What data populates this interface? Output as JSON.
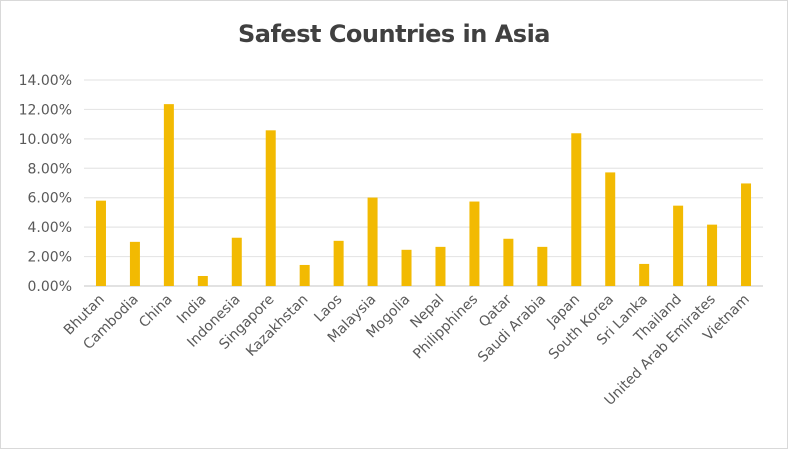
{
  "chart_data": {
    "type": "bar",
    "title": "Safest Countries in Asia",
    "xlabel": "",
    "ylabel": "",
    "ylim": [
      0,
      0.14
    ],
    "yticks": [
      0,
      0.02,
      0.04,
      0.06,
      0.08,
      0.1,
      0.12,
      0.14
    ],
    "ytick_labels": [
      "0.00%",
      "2.00%",
      "4.00%",
      "6.00%",
      "8.00%",
      "10.00%",
      "12.00%",
      "14.00%"
    ],
    "grid": true,
    "legend": "none",
    "bar_color": "#F2BA02",
    "categories": [
      "Bhutan",
      "Cambodia",
      "China",
      "India",
      "Indonesia",
      "Singapore",
      "Kazakhstan",
      "Laos",
      "Malaysia",
      "Mogolia",
      "Nepal",
      "Philipphines",
      "Qatar",
      "Saudi Arabia",
      "Japan",
      "South Korea",
      "Sri Lanka",
      "Thailand",
      "United Arab Emirates",
      "Vietnam"
    ],
    "values": [
      0.058,
      0.03,
      0.1236,
      0.0068,
      0.0328,
      0.1058,
      0.0143,
      0.0307,
      0.0601,
      0.0246,
      0.0266,
      0.0574,
      0.0321,
      0.0266,
      0.1038,
      0.0772,
      0.015,
      0.0546,
      0.0417,
      0.0697
    ]
  }
}
